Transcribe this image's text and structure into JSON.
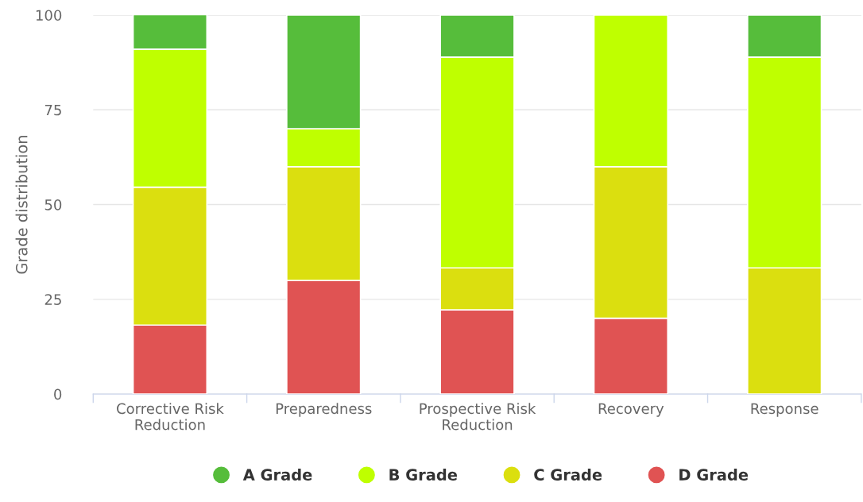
{
  "chart_data": {
    "type": "bar",
    "stacked": true,
    "ylabel": "Grade distribution",
    "categories": [
      "Corrective Risk\nReduction",
      "Preparedness",
      "Prospective Risk\nReduction",
      "Recovery",
      "Response"
    ],
    "series": [
      {
        "name": "D Grade",
        "color": "#e05353",
        "values": [
          18.2,
          30,
          22.2,
          20,
          0
        ]
      },
      {
        "name": "C Grade",
        "color": "#dbdf0f",
        "values": [
          36.4,
          30,
          11.1,
          40,
          33.3
        ]
      },
      {
        "name": "B Grade",
        "color": "#bfff00",
        "values": [
          36.4,
          10,
          55.6,
          40,
          55.6
        ]
      },
      {
        "name": "A Grade",
        "color": "#56bd3b",
        "values": [
          9.1,
          30,
          11.1,
          0,
          11.1
        ]
      }
    ],
    "ylim": [
      0,
      100
    ],
    "yticks": [
      0,
      25,
      50,
      75,
      100
    ],
    "grid": "y",
    "legend": "bottom"
  }
}
